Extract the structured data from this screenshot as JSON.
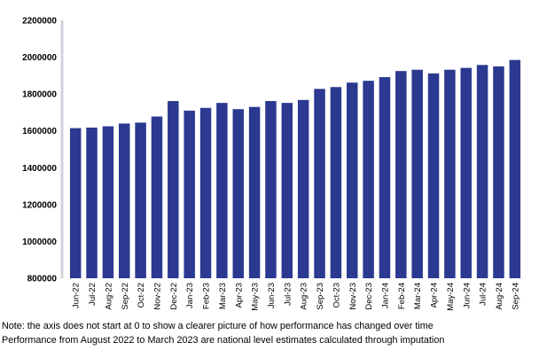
{
  "chart_data": {
    "type": "bar",
    "title": "",
    "xlabel": "",
    "ylabel": "",
    "ylim": [
      800000,
      2200000
    ],
    "yticks": [
      "800000",
      "1000000",
      "1200000",
      "1400000",
      "1600000",
      "1800000",
      "2000000",
      "2200000"
    ],
    "grid": false,
    "bar_color": "#2b3990",
    "categories": [
      "Jun-22",
      "Jul-22",
      "Aug-22",
      "Sep-22",
      "Oct-22",
      "Nov-22",
      "Dec-22",
      "Jan-23",
      "Feb-23",
      "Mar-23",
      "Apr-23",
      "May-23",
      "Jun-23",
      "Jul-23",
      "Aug-23",
      "Sep-23",
      "Oct-23",
      "Nov-23",
      "Dec-23",
      "Jan-24",
      "Feb-24",
      "Mar-24",
      "Apr-24",
      "May-24",
      "Jun-24",
      "Jul-24",
      "Aug-24",
      "Sep-24"
    ],
    "values": [
      1615000,
      1618000,
      1625000,
      1640000,
      1645000,
      1678000,
      1762000,
      1710000,
      1725000,
      1752000,
      1718000,
      1730000,
      1762000,
      1752000,
      1768000,
      1828000,
      1838000,
      1862000,
      1872000,
      1892000,
      1925000,
      1932000,
      1912000,
      1932000,
      1942000,
      1958000,
      1950000,
      1985000
    ]
  },
  "notes": {
    "line1": "Note: the axis does not start at 0 to show a clearer picture of how performance has changed over time",
    "line2": "Performance from August 2022 to March 2023 are national level estimates calculated through imputation"
  }
}
